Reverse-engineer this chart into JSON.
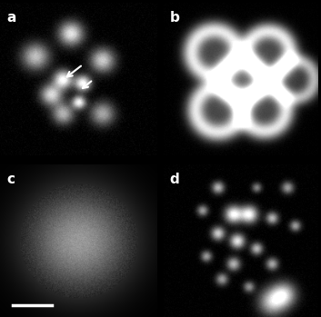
{
  "figure_width": 3.53,
  "figure_height": 3.49,
  "dpi": 100,
  "panels": [
    "a",
    "b",
    "c",
    "d"
  ],
  "bg_color": "#000000",
  "label_color": "#ffffff",
  "label_fontsize": 11,
  "divider_color": "#ffffff",
  "divider_linewidth": 1.5,
  "scalebar_color": "#ffffff"
}
